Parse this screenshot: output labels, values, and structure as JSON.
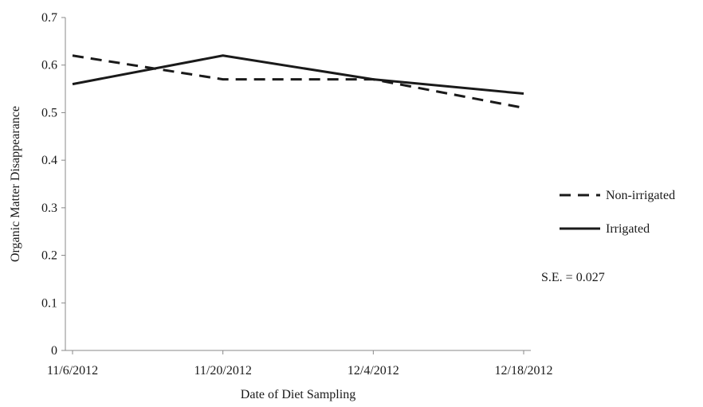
{
  "chart_data": {
    "type": "line",
    "title": "",
    "xlabel": "Date of Diet Sampling",
    "ylabel": "Organic Matter Disappearance",
    "categories": [
      "11/6/2012",
      "11/20/2012",
      "12/4/2012",
      "12/18/2012"
    ],
    "ylim": [
      0,
      0.7
    ],
    "yticks": [
      "0",
      "0.1",
      "0.2",
      "0.3",
      "0.4",
      "0.5",
      "0.6",
      "0.7"
    ],
    "grid": false,
    "legend_position": "right",
    "series": [
      {
        "name": "Non-irrigated",
        "style": "dashed",
        "color": "#1a1a1a",
        "values": [
          0.62,
          0.57,
          0.57,
          0.51
        ]
      },
      {
        "name": "Irrigated",
        "style": "solid",
        "color": "#1a1a1a",
        "values": [
          0.56,
          0.62,
          0.57,
          0.54
        ]
      }
    ],
    "annotation": "S.E. = 0.027"
  }
}
